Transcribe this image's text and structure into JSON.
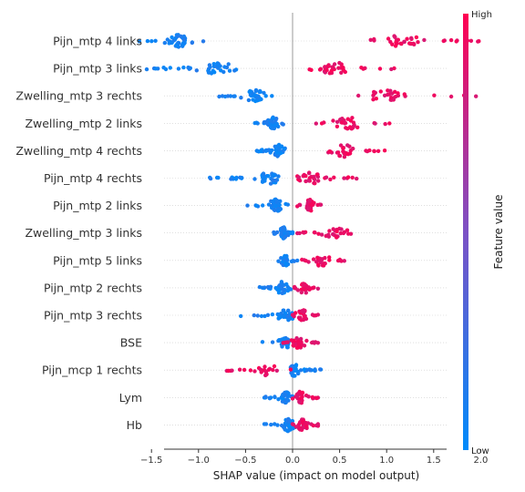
{
  "chart_data": {
    "type": "scatter",
    "subtype": "shap-beeswarm",
    "xlabel": "SHAP value (impact on model output)",
    "xlim": [
      -1.85,
      2.1
    ],
    "xticks": [
      -1.5,
      -1.0,
      -0.5,
      0.0,
      0.5,
      1.0,
      1.5,
      2.0
    ],
    "xtick_labels": [
      "−1.5",
      "−1.0",
      "−0.5",
      "0.0",
      "0.5",
      "1.0",
      "1.5",
      "2.0"
    ],
    "zero_line": 0,
    "colorbar": {
      "label": "Feature value",
      "high": "High",
      "low": "Low",
      "colors": [
        "#008bfb",
        "#7c52c5",
        "#ff0052"
      ]
    },
    "features": [
      {
        "name": "Pijn_mtp 4 links",
        "low": {
          "min": -1.63,
          "max": -0.95,
          "center": -1.22,
          "n": 45
        },
        "high": {
          "min": 0.83,
          "max": 1.98,
          "center": 1.15,
          "n": 38
        }
      },
      {
        "name": "Pijn_mtp 3 links",
        "low": {
          "min": -1.55,
          "max": -0.6,
          "center": -0.78,
          "n": 40
        },
        "high": {
          "min": 0.18,
          "max": 1.08,
          "center": 0.45,
          "n": 35
        }
      },
      {
        "name": "Zwelling_mtp 3 rechts",
        "low": {
          "min": -0.78,
          "max": -0.22,
          "center": -0.4,
          "n": 42
        },
        "high": {
          "min": 0.7,
          "max": 1.95,
          "center": 1.0,
          "n": 30
        }
      },
      {
        "name": "Zwelling_mtp 2 links",
        "low": {
          "min": -0.4,
          "max": -0.1,
          "center": -0.2,
          "n": 42
        },
        "high": {
          "min": 0.25,
          "max": 1.03,
          "center": 0.6,
          "n": 32
        }
      },
      {
        "name": "Zwelling_mtp 4 rechts",
        "low": {
          "min": -0.38,
          "max": -0.08,
          "center": -0.15,
          "n": 42
        },
        "high": {
          "min": 0.38,
          "max": 0.98,
          "center": 0.55,
          "n": 32
        }
      },
      {
        "name": "Pijn_mtp 4 rechts",
        "low": {
          "min": -0.88,
          "max": -0.15,
          "center": -0.25,
          "n": 42
        },
        "high": {
          "min": 0.05,
          "max": 0.68,
          "center": 0.2,
          "n": 32
        }
      },
      {
        "name": "Pijn_mtp 2 links",
        "low": {
          "min": -0.48,
          "max": -0.05,
          "center": -0.18,
          "n": 42
        },
        "high": {
          "min": 0.05,
          "max": 0.3,
          "center": 0.18,
          "n": 30
        }
      },
      {
        "name": "Zwelling_mtp 3 links",
        "low": {
          "min": -0.2,
          "max": 0.0,
          "center": -0.1,
          "n": 40
        },
        "high": {
          "min": 0.05,
          "max": 0.62,
          "center": 0.45,
          "n": 30
        }
      },
      {
        "name": "Pijn_mtp 5 links",
        "low": {
          "min": -0.15,
          "max": 0.05,
          "center": -0.08,
          "n": 40
        },
        "high": {
          "min": 0.1,
          "max": 0.55,
          "center": 0.3,
          "n": 28
        }
      },
      {
        "name": "Pijn_mtp 2 rechts",
        "low": {
          "min": -0.35,
          "max": -0.02,
          "center": -0.12,
          "n": 40
        },
        "high": {
          "min": 0.02,
          "max": 0.27,
          "center": 0.12,
          "n": 28
        }
      },
      {
        "name": "Pijn_mtp 3 rechts",
        "low": {
          "min": -0.55,
          "max": 0.0,
          "center": -0.08,
          "n": 40
        },
        "high": {
          "min": 0.0,
          "max": 0.27,
          "center": 0.1,
          "n": 28
        }
      },
      {
        "name": "BSE",
        "low": {
          "min": -0.32,
          "max": 0.0,
          "center": -0.08,
          "n": 35
        },
        "high": {
          "min": -0.1,
          "max": 0.27,
          "center": 0.05,
          "n": 35
        }
      },
      {
        "name": "Pijn_mcp 1 rechts",
        "low": {
          "min": -0.02,
          "max": 0.3,
          "center": 0.02,
          "n": 40
        },
        "high": {
          "min": -0.7,
          "max": -0.02,
          "center": -0.25,
          "n": 28
        }
      },
      {
        "name": "Lym",
        "low": {
          "min": -0.3,
          "max": 0.0,
          "center": -0.08,
          "n": 38
        },
        "high": {
          "min": 0.0,
          "max": 0.27,
          "center": 0.08,
          "n": 35
        }
      },
      {
        "name": "Hb",
        "low": {
          "min": -0.3,
          "max": 0.03,
          "center": -0.05,
          "n": 38
        },
        "high": {
          "min": 0.0,
          "max": 0.27,
          "center": 0.1,
          "n": 35
        }
      }
    ]
  }
}
